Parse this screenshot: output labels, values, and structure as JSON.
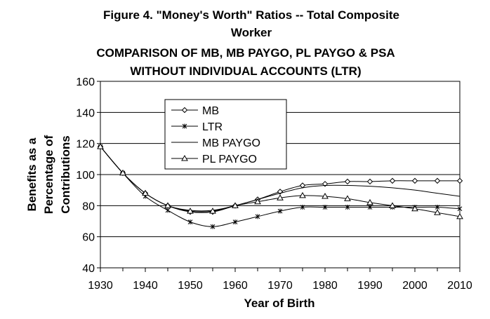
{
  "chart_data": {
    "type": "line",
    "title_line1": "Figure 4. \"Money's Worth\" Ratios -- Total Composite",
    "title_line2": "Worker",
    "subtitle_line1": "COMPARISON OF MB, MB PAYGO, PL PAYGO & PSA",
    "subtitle_line2": "WITHOUT INDIVIDUAL ACCOUNTS (LTR)",
    "xlabel": "Year of Birth",
    "ylabel_lines": [
      "Benefits as a",
      "Percentage of",
      "Contributions"
    ],
    "xlim": [
      1930,
      2010
    ],
    "ylim": [
      40,
      160
    ],
    "xticks": [
      1930,
      1940,
      1950,
      1960,
      1970,
      1980,
      1990,
      2000,
      2010
    ],
    "yticks": [
      40,
      60,
      80,
      100,
      120,
      140,
      160
    ],
    "grid": "horizontal",
    "legend_position": "upper-left inside",
    "series": [
      {
        "name": "MB",
        "marker": "diamond",
        "x": [
          1930,
          1935,
          1940,
          1945,
          1950,
          1955,
          1960,
          1965,
          1970,
          1975,
          1980,
          1985,
          1990,
          1995,
          2000,
          2005,
          2010
        ],
        "y": [
          118,
          101,
          88,
          80,
          76,
          76,
          80,
          84,
          89,
          93,
          94,
          95.5,
          95.5,
          96,
          96,
          96,
          96
        ]
      },
      {
        "name": "LTR",
        "marker": "asterisk",
        "x": [
          1930,
          1935,
          1940,
          1945,
          1950,
          1955,
          1960,
          1965,
          1970,
          1975,
          1980,
          1985,
          1990,
          1995,
          2000,
          2005,
          2010
        ],
        "y": [
          118,
          101,
          86,
          77,
          69.5,
          66.5,
          69.5,
          73,
          76.5,
          79,
          79,
          79,
          79,
          79,
          79,
          79,
          78
        ]
      },
      {
        "name": "MB PAYGO",
        "marker": "none",
        "x": [
          1930,
          1935,
          1940,
          1945,
          1950,
          1955,
          1960,
          1965,
          1970,
          1975,
          1980,
          1985,
          1990,
          1995,
          2000,
          2005,
          2010
        ],
        "y": [
          118,
          101,
          88,
          80,
          77,
          77,
          80,
          84,
          88,
          91.5,
          93,
          93,
          92.5,
          91.5,
          90,
          88,
          86
        ]
      },
      {
        "name": "PL PAYGO",
        "marker": "triangle",
        "x": [
          1930,
          1935,
          1940,
          1945,
          1950,
          1955,
          1960,
          1965,
          1970,
          1975,
          1980,
          1985,
          1990,
          1995,
          2000,
          2005,
          2010
        ],
        "y": [
          118,
          101,
          88,
          80,
          76.5,
          76.5,
          80,
          82.5,
          85,
          86.5,
          86,
          84.5,
          82,
          80,
          78,
          75.5,
          73
        ]
      }
    ]
  }
}
